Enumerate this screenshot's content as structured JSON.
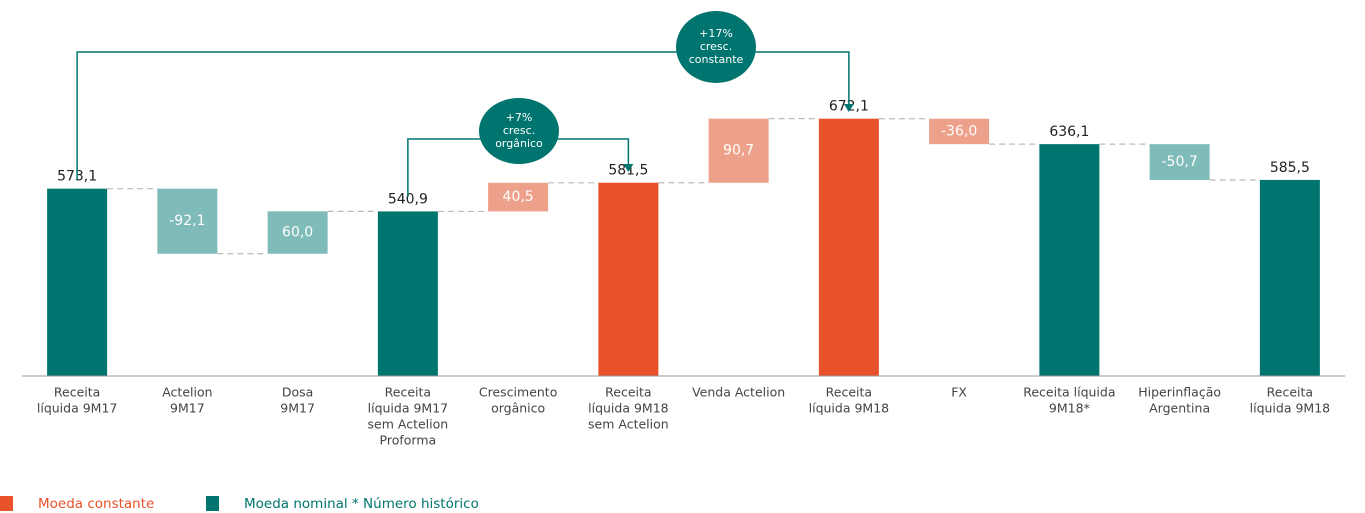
{
  "chart_data": {
    "type": "waterfall",
    "categories": [
      [
        "Receita",
        "líquida 9M17"
      ],
      [
        "Actelion",
        "9M17"
      ],
      [
        "Dosa",
        "9M17"
      ],
      [
        "Receita",
        "líquida 9M17",
        "sem Actelion",
        "Proforma"
      ],
      [
        "Crescimento",
        "orgânico"
      ],
      [
        "Receita",
        "líquida 9M18",
        "sem Actelion"
      ],
      [
        "Venda Actelion"
      ],
      [
        "Receita",
        "líquida 9M18"
      ],
      [
        "FX"
      ],
      [
        "Receita líquida",
        "9M18*"
      ],
      [
        "Hiperinflação",
        "Argentina"
      ],
      [
        "Receita",
        "líquida 9M18"
      ]
    ],
    "values": [
      573.1,
      -92.1,
      60.0,
      540.9,
      40.5,
      581.5,
      90.7,
      672.1,
      -36.0,
      636.1,
      -50.7,
      585.5
    ],
    "value_labels": [
      "573,1",
      "-92,1",
      "60,0",
      "540,9",
      "40,5",
      "581,5",
      "90,7",
      "672,1",
      "-36,0",
      "636,1",
      "-50,7",
      "585,5"
    ],
    "bar_kinds": [
      "total",
      "delta",
      "delta",
      "total",
      "delta",
      "total",
      "delta",
      "total",
      "delta",
      "total",
      "delta",
      "total"
    ],
    "colors": [
      "#00756f",
      "#7fbbb8",
      "#7fbbb8",
      "#00756f",
      "#eda08a",
      "#e8522a",
      "#eda08a",
      "#e8522a",
      "#eda08a",
      "#00756f",
      "#7fbbb8",
      "#00756f"
    ],
    "ylim": [
      308,
      700
    ],
    "annotations": [
      [
        "+17%",
        "cresc.",
        "constante"
      ],
      [
        "+7%",
        "cresc.",
        "orgânico"
      ]
    ],
    "legend": [
      {
        "name": "Moeda constante",
        "color": "#e8522a"
      },
      {
        "name": "Moeda nominal",
        "color": "#00756f"
      }
    ],
    "note": "* Número histórico"
  }
}
